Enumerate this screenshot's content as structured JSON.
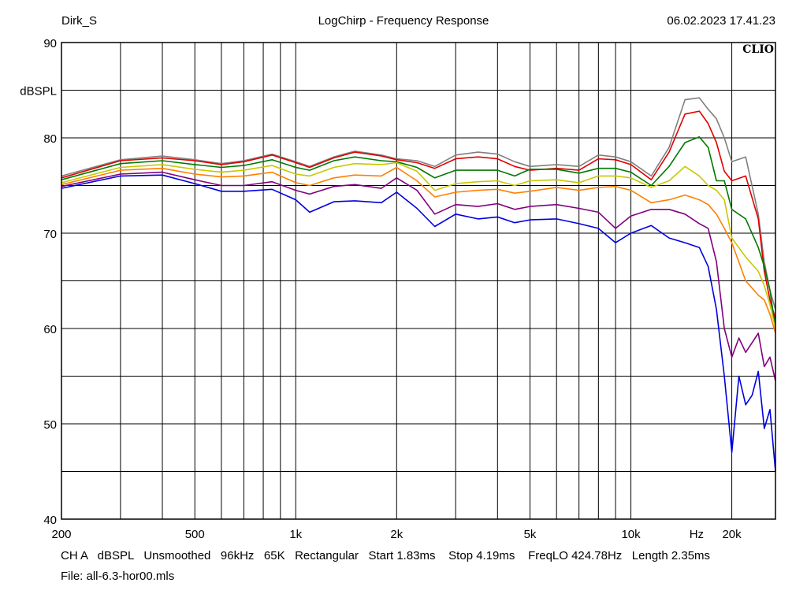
{
  "header": {
    "user": "Dirk_S",
    "title": "LogChirp - Frequency Response",
    "datetime": "06.02.2023 17.41.23"
  },
  "footer": {
    "settings": "CH A   dBSPL   Unsmoothed   96kHz   65K   Rectangular   Start 1.83ms    Stop 4.19ms    FreqLO 424.78Hz   Length 2.35ms",
    "file": "File: all-6.3-hor00.mls"
  },
  "brand": "CLIO",
  "chart_data": {
    "type": "line",
    "title": "LogChirp - Frequency Response",
    "xlabel": "Hz",
    "ylabel": "dBSPL",
    "xscale": "log",
    "xlim": [
      200,
      27000
    ],
    "ylim": [
      40,
      90
    ],
    "grid": true,
    "x_tick_labels": [
      {
        "v": 200,
        "t": "200"
      },
      {
        "v": 500,
        "t": "500"
      },
      {
        "v": 1000,
        "t": "1k"
      },
      {
        "v": 2000,
        "t": "2k"
      },
      {
        "v": 5000,
        "t": "5k"
      },
      {
        "v": 10000,
        "t": "10k"
      },
      {
        "v": 15700,
        "t": "Hz"
      },
      {
        "v": 20000,
        "t": "20k"
      }
    ],
    "y_tick_labels": [
      {
        "v": 90,
        "t": "90"
      },
      {
        "v": 85,
        "t": "dBSPL"
      },
      {
        "v": 80,
        "t": "80"
      },
      {
        "v": 70,
        "t": "70"
      },
      {
        "v": 60,
        "t": "60"
      },
      {
        "v": 50,
        "t": "50"
      },
      {
        "v": 40,
        "t": "40"
      }
    ],
    "series": [
      {
        "color": "#808080",
        "points": [
          [
            200,
            76.0
          ],
          [
            300,
            77.7
          ],
          [
            400,
            78.1
          ],
          [
            500,
            77.7
          ],
          [
            600,
            77.3
          ],
          [
            700,
            77.6
          ],
          [
            850,
            78.3
          ],
          [
            1000,
            77.5
          ],
          [
            1100,
            77.0
          ],
          [
            1300,
            78.0
          ],
          [
            1500,
            78.6
          ],
          [
            1800,
            78.2
          ],
          [
            2000,
            77.8
          ],
          [
            2300,
            77.6
          ],
          [
            2600,
            77.0
          ],
          [
            3000,
            78.2
          ],
          [
            3500,
            78.5
          ],
          [
            4000,
            78.3
          ],
          [
            4500,
            77.5
          ],
          [
            5000,
            77.0
          ],
          [
            6000,
            77.2
          ],
          [
            7000,
            77.0
          ],
          [
            8000,
            78.2
          ],
          [
            9000,
            78.0
          ],
          [
            10000,
            77.5
          ],
          [
            11500,
            76.0
          ],
          [
            13000,
            79.0
          ],
          [
            14500,
            84.0
          ],
          [
            16000,
            84.2
          ],
          [
            17000,
            83.0
          ],
          [
            18000,
            82.0
          ],
          [
            19000,
            80.0
          ],
          [
            20000,
            77.5
          ],
          [
            22000,
            78.0
          ],
          [
            24000,
            72.0
          ],
          [
            25000,
            67.0
          ],
          [
            26000,
            64.0
          ],
          [
            27000,
            62.0
          ]
        ]
      },
      {
        "color": "#e00000",
        "points": [
          [
            200,
            75.8
          ],
          [
            300,
            77.6
          ],
          [
            400,
            77.9
          ],
          [
            500,
            77.6
          ],
          [
            600,
            77.2
          ],
          [
            700,
            77.5
          ],
          [
            850,
            78.2
          ],
          [
            1000,
            77.4
          ],
          [
            1100,
            76.9
          ],
          [
            1300,
            77.9
          ],
          [
            1500,
            78.5
          ],
          [
            1800,
            78.1
          ],
          [
            2000,
            77.7
          ],
          [
            2300,
            77.4
          ],
          [
            2600,
            76.8
          ],
          [
            3000,
            77.8
          ],
          [
            3500,
            78.0
          ],
          [
            4000,
            77.8
          ],
          [
            4500,
            77.0
          ],
          [
            5000,
            76.6
          ],
          [
            6000,
            76.8
          ],
          [
            7000,
            76.6
          ],
          [
            8000,
            77.8
          ],
          [
            9000,
            77.7
          ],
          [
            10000,
            77.2
          ],
          [
            11500,
            75.6
          ],
          [
            13000,
            78.5
          ],
          [
            14500,
            82.5
          ],
          [
            16000,
            82.8
          ],
          [
            17000,
            81.5
          ],
          [
            18000,
            79.5
          ],
          [
            19000,
            76.5
          ],
          [
            20000,
            75.5
          ],
          [
            22000,
            76.0
          ],
          [
            24000,
            71.5
          ],
          [
            25000,
            66.0
          ],
          [
            26000,
            63.0
          ],
          [
            27000,
            61.0
          ]
        ]
      },
      {
        "color": "#007a00",
        "points": [
          [
            200,
            75.6
          ],
          [
            300,
            77.3
          ],
          [
            400,
            77.6
          ],
          [
            500,
            77.2
          ],
          [
            600,
            76.9
          ],
          [
            700,
            77.1
          ],
          [
            850,
            77.7
          ],
          [
            1000,
            76.9
          ],
          [
            1100,
            76.6
          ],
          [
            1300,
            77.6
          ],
          [
            1500,
            78.0
          ],
          [
            1800,
            77.6
          ],
          [
            2000,
            77.5
          ],
          [
            2300,
            76.9
          ],
          [
            2600,
            75.8
          ],
          [
            3000,
            76.6
          ],
          [
            3500,
            76.6
          ],
          [
            4000,
            76.6
          ],
          [
            4500,
            76.0
          ],
          [
            5000,
            76.7
          ],
          [
            6000,
            76.7
          ],
          [
            7000,
            76.3
          ],
          [
            8000,
            76.8
          ],
          [
            9000,
            76.8
          ],
          [
            10000,
            76.4
          ],
          [
            11500,
            75.0
          ],
          [
            13000,
            77.0
          ],
          [
            14500,
            79.5
          ],
          [
            16000,
            80.1
          ],
          [
            17000,
            79.0
          ],
          [
            18000,
            75.5
          ],
          [
            19000,
            75.5
          ],
          [
            20000,
            72.5
          ],
          [
            22000,
            71.5
          ],
          [
            24000,
            68.5
          ],
          [
            25000,
            66.5
          ],
          [
            26000,
            64.0
          ],
          [
            27000,
            60.0
          ]
        ]
      },
      {
        "color": "#c8c800",
        "points": [
          [
            200,
            75.3
          ],
          [
            300,
            76.9
          ],
          [
            400,
            77.2
          ],
          [
            500,
            76.7
          ],
          [
            600,
            76.4
          ],
          [
            700,
            76.6
          ],
          [
            850,
            77.1
          ],
          [
            1000,
            76.2
          ],
          [
            1100,
            76.0
          ],
          [
            1300,
            76.9
          ],
          [
            1500,
            77.3
          ],
          [
            1800,
            77.2
          ],
          [
            2000,
            77.4
          ],
          [
            2300,
            76.5
          ],
          [
            2600,
            74.5
          ],
          [
            3000,
            75.2
          ],
          [
            3500,
            75.4
          ],
          [
            4000,
            75.5
          ],
          [
            4500,
            75.0
          ],
          [
            5000,
            75.5
          ],
          [
            6000,
            75.6
          ],
          [
            7000,
            75.3
          ],
          [
            8000,
            76.0
          ],
          [
            9000,
            76.0
          ],
          [
            10000,
            75.8
          ],
          [
            11500,
            74.8
          ],
          [
            13000,
            75.5
          ],
          [
            14500,
            77.0
          ],
          [
            16000,
            76.0
          ],
          [
            17000,
            75.0
          ],
          [
            18000,
            74.5
          ],
          [
            19000,
            73.5
          ],
          [
            20000,
            69.5
          ],
          [
            22000,
            67.5
          ],
          [
            24000,
            66.0
          ],
          [
            25000,
            64.5
          ],
          [
            26000,
            62.5
          ],
          [
            27000,
            60.0
          ]
        ]
      },
      {
        "color": "#ff8000",
        "points": [
          [
            200,
            75.1
          ],
          [
            300,
            76.6
          ],
          [
            400,
            76.8
          ],
          [
            500,
            76.2
          ],
          [
            600,
            75.9
          ],
          [
            700,
            76.0
          ],
          [
            850,
            76.4
          ],
          [
            1000,
            75.3
          ],
          [
            1100,
            75.0
          ],
          [
            1300,
            75.8
          ],
          [
            1500,
            76.1
          ],
          [
            1800,
            76.0
          ],
          [
            2000,
            76.9
          ],
          [
            2300,
            75.5
          ],
          [
            2600,
            73.8
          ],
          [
            3000,
            74.3
          ],
          [
            3500,
            74.5
          ],
          [
            4000,
            74.6
          ],
          [
            4500,
            74.2
          ],
          [
            5000,
            74.4
          ],
          [
            6000,
            74.8
          ],
          [
            7000,
            74.5
          ],
          [
            8000,
            74.8
          ],
          [
            9000,
            74.9
          ],
          [
            10000,
            74.5
          ],
          [
            11500,
            73.2
          ],
          [
            13000,
            73.5
          ],
          [
            14500,
            74.0
          ],
          [
            16000,
            73.5
          ],
          [
            17000,
            73.0
          ],
          [
            18000,
            72.0
          ],
          [
            19000,
            70.5
          ],
          [
            20000,
            69.0
          ],
          [
            22000,
            65.0
          ],
          [
            24000,
            63.5
          ],
          [
            25000,
            63.0
          ],
          [
            26000,
            61.5
          ],
          [
            27000,
            59.5
          ]
        ]
      },
      {
        "color": "#800080",
        "points": [
          [
            200,
            74.9
          ],
          [
            300,
            76.2
          ],
          [
            400,
            76.4
          ],
          [
            500,
            75.6
          ],
          [
            600,
            75.0
          ],
          [
            700,
            75.0
          ],
          [
            850,
            75.4
          ],
          [
            1000,
            74.5
          ],
          [
            1100,
            74.1
          ],
          [
            1300,
            74.9
          ],
          [
            1500,
            75.1
          ],
          [
            1800,
            74.7
          ],
          [
            2000,
            75.8
          ],
          [
            2300,
            74.5
          ],
          [
            2600,
            72.0
          ],
          [
            3000,
            73.0
          ],
          [
            3500,
            72.8
          ],
          [
            4000,
            73.1
          ],
          [
            4500,
            72.5
          ],
          [
            5000,
            72.8
          ],
          [
            6000,
            73.0
          ],
          [
            7000,
            72.6
          ],
          [
            8000,
            72.2
          ],
          [
            9000,
            70.5
          ],
          [
            10000,
            71.8
          ],
          [
            11500,
            72.5
          ],
          [
            13000,
            72.5
          ],
          [
            14500,
            72.0
          ],
          [
            16000,
            71.0
          ],
          [
            17000,
            70.5
          ],
          [
            18000,
            67.0
          ],
          [
            19000,
            60.0
          ],
          [
            20000,
            57.0
          ],
          [
            21000,
            59.0
          ],
          [
            22000,
            57.5
          ],
          [
            24000,
            59.5
          ],
          [
            25000,
            56.0
          ],
          [
            26000,
            57.0
          ],
          [
            27000,
            54.5
          ]
        ]
      },
      {
        "color": "#0000e0",
        "points": [
          [
            200,
            74.7
          ],
          [
            300,
            76.0
          ],
          [
            400,
            76.1
          ],
          [
            500,
            75.2
          ],
          [
            600,
            74.4
          ],
          [
            700,
            74.4
          ],
          [
            850,
            74.6
          ],
          [
            1000,
            73.5
          ],
          [
            1100,
            72.2
          ],
          [
            1300,
            73.3
          ],
          [
            1500,
            73.4
          ],
          [
            1800,
            73.2
          ],
          [
            2000,
            74.3
          ],
          [
            2300,
            72.6
          ],
          [
            2600,
            70.7
          ],
          [
            3000,
            72.0
          ],
          [
            3500,
            71.5
          ],
          [
            4000,
            71.7
          ],
          [
            4500,
            71.1
          ],
          [
            5000,
            71.4
          ],
          [
            6000,
            71.5
          ],
          [
            7000,
            71.0
          ],
          [
            8000,
            70.5
          ],
          [
            9000,
            69.0
          ],
          [
            10000,
            70.0
          ],
          [
            11500,
            70.8
          ],
          [
            13000,
            69.5
          ],
          [
            14500,
            69.0
          ],
          [
            16000,
            68.5
          ],
          [
            17000,
            66.5
          ],
          [
            18000,
            62.0
          ],
          [
            19000,
            55.0
          ],
          [
            20000,
            47.0
          ],
          [
            21000,
            55.0
          ],
          [
            22000,
            52.0
          ],
          [
            23000,
            53.0
          ],
          [
            24000,
            55.5
          ],
          [
            25000,
            49.5
          ],
          [
            26000,
            51.5
          ],
          [
            27000,
            45.0
          ]
        ]
      }
    ]
  }
}
